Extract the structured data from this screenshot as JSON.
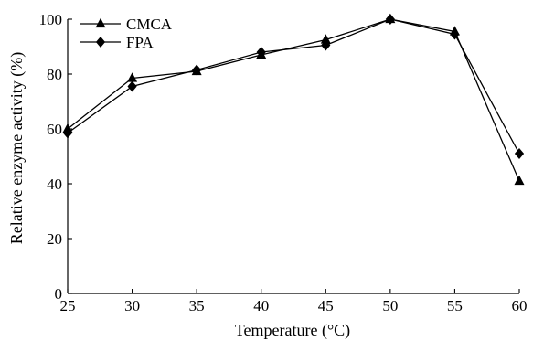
{
  "chart_data": {
    "type": "line",
    "xlabel": "Temperature (°C)",
    "ylabel": "Relative enzyme activity (%)",
    "x": [
      25,
      30,
      35,
      40,
      45,
      50,
      55,
      60
    ],
    "xlim": [
      25,
      60
    ],
    "ylim": [
      0,
      100
    ],
    "x_ticks": [
      25,
      30,
      35,
      40,
      45,
      50,
      55,
      60
    ],
    "y_ticks": [
      0,
      20,
      40,
      60,
      80,
      100
    ],
    "grid": false,
    "legend_position": "top-left",
    "series": [
      {
        "name": "CMCA",
        "marker": "triangle",
        "values": [
          60,
          78.5,
          81,
          87,
          92.5,
          100,
          95.5,
          41
        ]
      },
      {
        "name": "FPA",
        "marker": "diamond",
        "values": [
          58.5,
          75.5,
          81.5,
          88,
          90.5,
          100,
          94.5,
          51
        ]
      }
    ]
  }
}
